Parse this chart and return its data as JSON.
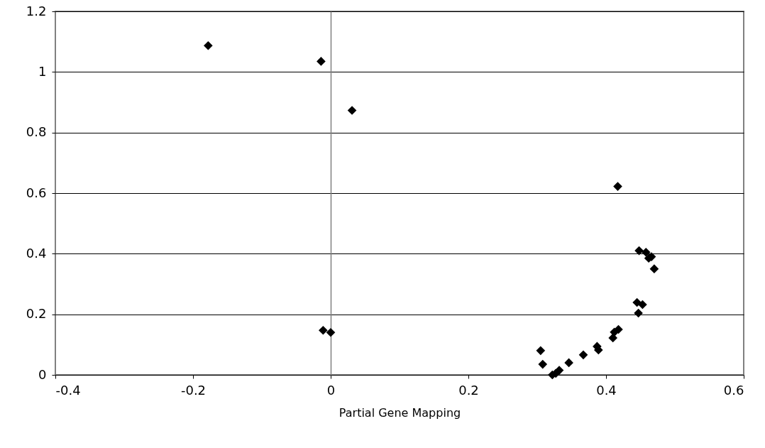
{
  "chart_data": {
    "type": "scatter",
    "xlabel": "Partial Gene Mapping",
    "x": [
      -0.178,
      -0.014,
      0.031,
      -0.011,
      0.0,
      0.417,
      0.305,
      0.308,
      0.322,
      0.327,
      0.332,
      0.346,
      0.367,
      0.387,
      0.389,
      0.41,
      0.412,
      0.418,
      0.445,
      0.453,
      0.447,
      0.448,
      0.458,
      0.462,
      0.466,
      0.47
    ],
    "series": [
      {
        "color": "#000000",
        "values": [
          1.087,
          1.035,
          0.873,
          0.147,
          0.14,
          0.622,
          0.08,
          0.035,
          0.0,
          0.005,
          0.015,
          0.04,
          0.066,
          0.094,
          0.082,
          0.122,
          0.141,
          0.15,
          0.239,
          0.232,
          0.204,
          0.41,
          0.405,
          0.385,
          0.39,
          0.35
        ]
      }
    ],
    "xlim": [
      -0.4,
      0.6
    ],
    "xticks": [
      -0.4,
      -0.2,
      0,
      0.2,
      0.4,
      0.6
    ],
    "ylim": [
      0,
      1.2
    ],
    "yticks": [
      0,
      0.2,
      0.4,
      0.6,
      0.8,
      1,
      1.2
    ],
    "grid": "y",
    "marker": "diamond"
  }
}
